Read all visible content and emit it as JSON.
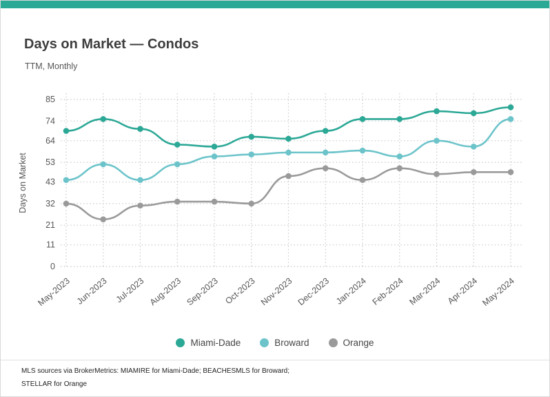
{
  "header": {
    "title": "Days on Market — Condos",
    "subtitle": "TTM, Monthly"
  },
  "colors": {
    "top_bar": "#2ca896",
    "grid": "#c8c8c8"
  },
  "chart_data": {
    "type": "line",
    "title": "Days on Market — Condos",
    "subtitle": "TTM, Monthly",
    "xlabel": "",
    "ylabel": "Days on Market",
    "ylim": [
      0,
      85
    ],
    "y_ticks": [
      0,
      11,
      21,
      32,
      43,
      53,
      64,
      74,
      85
    ],
    "grid": true,
    "legend_position": "bottom",
    "categories": [
      "May-2023",
      "Jun-2023",
      "Jul-2023",
      "Aug-2023",
      "Sep-2023",
      "Oct-2023",
      "Nov-2023",
      "Dec-2023",
      "Jan-2024",
      "Feb-2024",
      "Mar-2024",
      "Apr-2024",
      "May-2024"
    ],
    "series": [
      {
        "name": "Miami-Dade",
        "color": "#2ca896",
        "values": [
          69,
          75,
          70,
          62,
          61,
          66,
          65,
          69,
          75,
          75,
          79,
          78,
          81
        ]
      },
      {
        "name": "Broward",
        "color": "#6cc4ca",
        "values": [
          44,
          52,
          44,
          52,
          56,
          57,
          58,
          58,
          59,
          56,
          64,
          61,
          75
        ]
      },
      {
        "name": "Orange",
        "color": "#9a9a9a",
        "values": [
          32,
          24,
          31,
          33,
          33,
          32,
          46,
          50,
          44,
          50,
          47,
          48,
          48
        ]
      }
    ]
  },
  "footer": {
    "line1": "MLS sources via BrokerMetrics: MIAMIRE for Miami-Dade; BEACHESMLS for Broward;",
    "line2": "STELLAR for Orange"
  }
}
